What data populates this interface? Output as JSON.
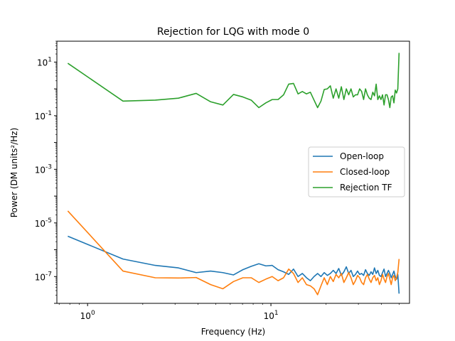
{
  "chart_data": {
    "type": "line",
    "title": "Rejection for LQG with mode 0",
    "xlabel": "Frequency (Hz)",
    "ylabel": "Power (DM units²/Hz)",
    "xscale": "log",
    "yscale": "log",
    "xlim": [
      0.68,
      57
    ],
    "ylim": [
      1e-08,
      60
    ],
    "x_ticks": [
      {
        "value": 1,
        "label": "10^0"
      },
      {
        "value": 10,
        "label": "10^1"
      }
    ],
    "y_ticks": [
      {
        "value": 1e-07,
        "label": "10^-7"
      },
      {
        "value": 1e-05,
        "label": "10^-5"
      },
      {
        "value": 0.001,
        "label": "10^-3"
      },
      {
        "value": 0.1,
        "label": "10^-1"
      },
      {
        "value": 10,
        "label": "10^1"
      }
    ],
    "grid": false,
    "legend": "center-right",
    "series": [
      {
        "name": "Open-loop",
        "color": "#1f77b4",
        "points": [
          [
            0.78,
            3.2e-06
          ],
          [
            1.56,
            4.5e-07
          ],
          [
            2.34,
            2.6e-07
          ],
          [
            3.13,
            2.1e-07
          ],
          [
            3.91,
            1.4e-07
          ],
          [
            4.69,
            1.6e-07
          ],
          [
            5.47,
            1.4e-07
          ],
          [
            6.25,
            1.15e-07
          ],
          [
            7.03,
            1.8e-07
          ],
          [
            7.81,
            2.4e-07
          ],
          [
            8.59,
            3e-07
          ],
          [
            9.38,
            2.5e-07
          ],
          [
            10.16,
            2.6e-07
          ],
          [
            10.94,
            1.8e-07
          ],
          [
            11.72,
            1.5e-07
          ],
          [
            12.5,
            1.2e-07
          ],
          [
            13.28,
            1.9e-07
          ],
          [
            14.06,
            1e-07
          ],
          [
            14.84,
            1.3e-07
          ],
          [
            15.63,
            9e-08
          ],
          [
            16.41,
            7e-08
          ],
          [
            17.19,
            1e-07
          ],
          [
            17.97,
            1.3e-07
          ],
          [
            18.75,
            1e-07
          ],
          [
            19.53,
            1.4e-07
          ],
          [
            20.31,
            1.1e-07
          ],
          [
            21.09,
            1.3e-07
          ],
          [
            21.88,
            1.7e-07
          ],
          [
            22.66,
            1.3e-07
          ],
          [
            23.44,
            2e-07
          ],
          [
            24.22,
            1.1e-07
          ],
          [
            25.0,
            1.5e-07
          ],
          [
            25.78,
            2.3e-07
          ],
          [
            26.56,
            1.3e-07
          ],
          [
            27.34,
            1.7e-07
          ],
          [
            28.13,
            1e-07
          ],
          [
            28.91,
            1.2e-07
          ],
          [
            29.69,
            1.6e-07
          ],
          [
            30.47,
            1.2e-07
          ],
          [
            31.25,
            1.3e-07
          ],
          [
            32.03,
            1.1e-07
          ],
          [
            32.81,
            1.8e-07
          ],
          [
            33.59,
            1.3e-07
          ],
          [
            34.38,
            1.1e-07
          ],
          [
            35.16,
            1.5e-07
          ],
          [
            35.94,
            1.2e-07
          ],
          [
            36.72,
            2.1e-07
          ],
          [
            37.5,
            1.3e-07
          ],
          [
            38.28,
            1.7e-07
          ],
          [
            39.06,
            1.1e-07
          ],
          [
            39.84,
            1e-07
          ],
          [
            40.63,
            1.4e-07
          ],
          [
            41.41,
            1.9e-07
          ],
          [
            42.19,
            1e-07
          ],
          [
            42.97,
            1.3e-07
          ],
          [
            43.75,
            1.7e-07
          ],
          [
            44.53,
            1.3e-07
          ],
          [
            45.31,
            9e-08
          ],
          [
            46.09,
            1.2e-07
          ],
          [
            46.88,
            1.6e-07
          ],
          [
            47.66,
            1e-07
          ],
          [
            48.44,
            8e-08
          ],
          [
            49.22,
            1.2e-07
          ],
          [
            50.0,
            2.3e-08
          ]
        ]
      },
      {
        "name": "Closed-loop",
        "color": "#ff7f0e",
        "points": [
          [
            0.78,
            2.8e-05
          ],
          [
            1.56,
            1.6e-07
          ],
          [
            2.34,
            9e-08
          ],
          [
            3.13,
            8.8e-08
          ],
          [
            3.91,
            9.2e-08
          ],
          [
            4.69,
            5e-08
          ],
          [
            5.47,
            3.5e-08
          ],
          [
            6.25,
            6.5e-08
          ],
          [
            7.03,
            9e-08
          ],
          [
            7.81,
            9e-08
          ],
          [
            8.59,
            6e-08
          ],
          [
            9.38,
            8e-08
          ],
          [
            10.16,
            1e-07
          ],
          [
            10.94,
            7e-08
          ],
          [
            11.72,
            9e-08
          ],
          [
            12.5,
            1.9e-07
          ],
          [
            13.28,
            1.3e-07
          ],
          [
            14.06,
            6e-08
          ],
          [
            14.84,
            9e-08
          ],
          [
            15.63,
            5e-08
          ],
          [
            16.41,
            4.5e-08
          ],
          [
            17.19,
            3.5e-08
          ],
          [
            17.97,
            2.1e-08
          ],
          [
            18.75,
            4.5e-08
          ],
          [
            19.53,
            9e-08
          ],
          [
            20.31,
            5e-08
          ],
          [
            21.09,
            1e-07
          ],
          [
            21.88,
            6.5e-08
          ],
          [
            22.66,
            1.2e-07
          ],
          [
            23.44,
            9e-08
          ],
          [
            24.22,
            1.3e-07
          ],
          [
            25.0,
            6e-08
          ],
          [
            25.78,
            9e-08
          ],
          [
            26.56,
            1.4e-07
          ],
          [
            27.34,
            9e-08
          ],
          [
            28.13,
            5e-08
          ],
          [
            28.91,
            7e-08
          ],
          [
            29.69,
            1.1e-07
          ],
          [
            30.47,
            9e-08
          ],
          [
            31.25,
            6e-08
          ],
          [
            32.03,
            5e-08
          ],
          [
            32.81,
            9e-08
          ],
          [
            33.59,
            1.2e-07
          ],
          [
            34.38,
            8e-08
          ],
          [
            35.16,
            6e-08
          ],
          [
            35.94,
            9e-08
          ],
          [
            36.72,
            1.1e-07
          ],
          [
            37.5,
            7e-08
          ],
          [
            38.28,
            9e-08
          ],
          [
            39.06,
            5e-08
          ],
          [
            39.84,
            7e-08
          ],
          [
            40.63,
            1.2e-07
          ],
          [
            41.41,
            8e-08
          ],
          [
            42.19,
            6e-08
          ],
          [
            42.97,
            1e-07
          ],
          [
            43.75,
            1.3e-07
          ],
          [
            44.53,
            8e-08
          ],
          [
            45.31,
            5e-08
          ],
          [
            46.09,
            9e-08
          ],
          [
            46.88,
            1.1e-07
          ],
          [
            47.66,
            7e-08
          ],
          [
            48.44,
            9e-08
          ],
          [
            49.22,
            1.4e-07
          ],
          [
            50.0,
            4.5e-07
          ]
        ]
      },
      {
        "name": "Rejection TF",
        "color": "#2ca02c",
        "points": [
          [
            0.78,
            9.0
          ],
          [
            1.56,
            0.35
          ],
          [
            2.34,
            0.38
          ],
          [
            3.13,
            0.45
          ],
          [
            3.91,
            0.68
          ],
          [
            4.69,
            0.33
          ],
          [
            5.47,
            0.25
          ],
          [
            6.25,
            0.62
          ],
          [
            7.03,
            0.5
          ],
          [
            7.81,
            0.38
          ],
          [
            8.59,
            0.2
          ],
          [
            9.38,
            0.3
          ],
          [
            10.16,
            0.4
          ],
          [
            10.94,
            0.4
          ],
          [
            11.72,
            0.6
          ],
          [
            12.5,
            1.5
          ],
          [
            13.28,
            1.6
          ],
          [
            14.06,
            0.65
          ],
          [
            14.84,
            0.8
          ],
          [
            15.63,
            0.65
          ],
          [
            16.41,
            0.75
          ],
          [
            17.19,
            0.38
          ],
          [
            17.97,
            0.2
          ],
          [
            18.75,
            0.35
          ],
          [
            19.53,
            0.95
          ],
          [
            20.31,
            1.0
          ],
          [
            21.09,
            1.3
          ],
          [
            21.88,
            0.45
          ],
          [
            22.66,
            1.0
          ],
          [
            23.44,
            0.45
          ],
          [
            24.22,
            1.2
          ],
          [
            25.0,
            0.4
          ],
          [
            25.78,
            1.0
          ],
          [
            26.56,
            0.6
          ],
          [
            27.34,
            1.0
          ],
          [
            28.13,
            0.5
          ],
          [
            28.91,
            0.6
          ],
          [
            29.69,
            0.6
          ],
          [
            30.47,
            1.0
          ],
          [
            31.25,
            0.8
          ],
          [
            32.03,
            0.4
          ],
          [
            32.81,
            1.0
          ],
          [
            33.59,
            0.6
          ],
          [
            34.38,
            0.45
          ],
          [
            35.16,
            0.4
          ],
          [
            35.94,
            0.75
          ],
          [
            36.72,
            0.55
          ],
          [
            37.5,
            1.5
          ],
          [
            38.28,
            0.4
          ],
          [
            39.06,
            0.55
          ],
          [
            39.84,
            0.4
          ],
          [
            40.63,
            0.6
          ],
          [
            41.41,
            0.25
          ],
          [
            42.19,
            0.6
          ],
          [
            42.97,
            0.6
          ],
          [
            43.75,
            0.4
          ],
          [
            44.53,
            0.2
          ],
          [
            45.31,
            0.5
          ],
          [
            46.09,
            0.55
          ],
          [
            46.88,
            0.3
          ],
          [
            47.66,
            0.9
          ],
          [
            48.44,
            0.7
          ],
          [
            49.22,
            1.0
          ],
          [
            50.0,
            22.0
          ]
        ]
      }
    ]
  }
}
